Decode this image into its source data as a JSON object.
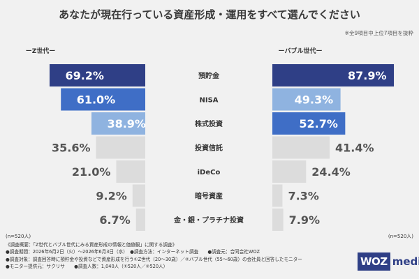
{
  "chart_data": {
    "type": "bar",
    "title": "あなたが現在行っている資産形成・運用をすべて選んでください",
    "note": "※全9項目中上位7項目を抜粋",
    "categories": [
      "預貯金",
      "NISA",
      "株式投資",
      "投資信託",
      "iDeCo",
      "暗号資産",
      "金・銀・プラチナ投資"
    ],
    "series": [
      {
        "name": "ーZ世代ー",
        "n_label": "(n=520人)",
        "values": [
          69.2,
          61.0,
          38.9,
          35.6,
          21.0,
          9.2,
          6.7
        ],
        "value_labels": [
          "69.2%",
          "61.0%",
          "38.9%",
          "35.6%",
          "21.0%",
          "9.2%",
          "6.7%"
        ]
      },
      {
        "name": "ーバブル世代ー",
        "n_label": "(n=520人)",
        "values": [
          87.9,
          49.3,
          52.7,
          41.4,
          24.4,
          7.3,
          7.9
        ],
        "value_labels": [
          "87.9%",
          "49.3%",
          "52.7%",
          "41.4%",
          "24.4%",
          "7.3%",
          "7.9%"
        ]
      }
    ],
    "xlim": [
      0,
      100
    ],
    "z_bar_colors": [
      "#2f3f86",
      "#3f6ec6",
      "#8fb3e0",
      "#dcdcdc",
      "#dcdcdc",
      "#dcdcdc",
      "#dcdcdc"
    ],
    "bubble_bar_colors": [
      "#2f3f86",
      "#8fb3e0",
      "#3f6ec6",
      "#dcdcdc",
      "#dcdcdc",
      "#dcdcdc",
      "#dcdcdc"
    ],
    "z_label_colors": [
      "#2f3f86",
      "#3f6ec6",
      "#8fb3e0",
      "#555555",
      "#555555",
      "#555555",
      "#555555"
    ],
    "bubble_label_colors": [
      "#2f3f86",
      "#8fb3e0",
      "#3f6ec6",
      "#555555",
      "#555555",
      "#555555",
      "#555555"
    ]
  },
  "footer": {
    "lines": [
      "《調査概要：「Z世代とバブル世代にみる資産形成の情報と価値観」に関する調査》",
      "●調査期間：2026年6月2日（火）〜2026年6月3日（水）　●調査方法：インターネット調査　　●調査元：合同会社WOZ",
      "●調査対象：調査回答時に預貯金や投資などで資産形成を行う①Z世代（20〜30歳）／②バブル世代（55〜60歳）の会社員と回答したモニター",
      "●モニター提供元：サクリサ　　●調査人数：1,040人（①520人／②520人）"
    ]
  },
  "logo": {
    "box_text": "WOZ",
    "text": "media"
  }
}
